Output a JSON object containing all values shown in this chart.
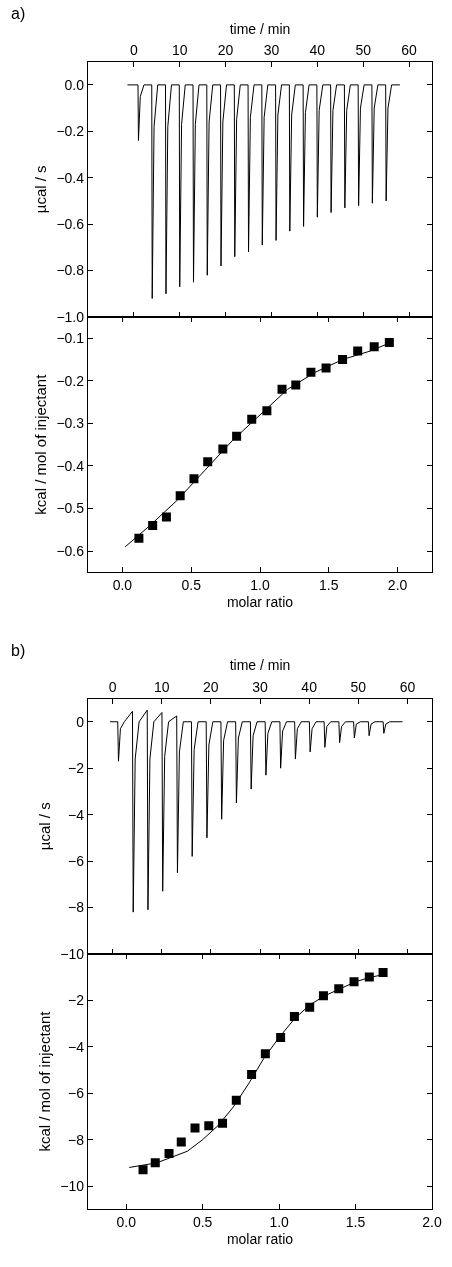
{
  "chart_data": [
    {
      "type": "line",
      "title": "a)",
      "xlabel": "time / min",
      "ylabel": "µcal / s",
      "xlim": [
        -10,
        65
      ],
      "xticks": [
        0,
        10,
        20,
        30,
        40,
        50,
        60
      ],
      "ylim": [
        -1.0,
        0.1
      ],
      "yticks": [
        {
          "value": 0,
          "label": "0.0"
        },
        {
          "value": -0.2,
          "label": "−0.2"
        },
        {
          "value": -0.4,
          "label": "−0.4"
        },
        {
          "value": -0.6,
          "label": "−0.6"
        },
        {
          "value": -0.8,
          "label": "−0.8"
        },
        {
          "value": -1.0,
          "label": "−1.0"
        }
      ],
      "marker": "none",
      "line_style": "solid",
      "series": [
        {
          "color": "#000000",
          "x": [
            -1.4,
            0.9,
            1,
            1.4,
            2.2,
            3.9,
            4,
            4.4,
            5.2,
            6.9,
            7,
            7.4,
            8.2,
            9.9,
            10,
            10.4,
            11.2,
            12.9,
            13,
            13.4,
            14.2,
            15.9,
            16,
            16.4,
            17.2,
            18.9,
            19,
            19.4,
            20.2,
            21.9,
            22,
            22.4,
            23.2,
            24.9,
            25,
            25.4,
            26.2,
            27.9,
            28,
            28.4,
            29.2,
            30.9,
            31,
            31.4,
            32.2,
            33.9,
            34,
            34.4,
            35.2,
            36.9,
            37,
            37.4,
            38.2,
            39.9,
            40,
            40.4,
            41.2,
            42.9,
            43,
            43.4,
            44.2,
            45.9,
            46,
            46.4,
            47.2,
            48.9,
            49,
            49.4,
            50.2,
            51.9,
            52,
            52.4,
            53.2,
            54.9,
            55,
            55.4,
            56.2,
            58
          ],
          "values": [
            0,
            0,
            -0.24,
            -0.05,
            0,
            0,
            -0.92,
            -0.18,
            0,
            0,
            -0.9,
            -0.18,
            0,
            0,
            -0.87,
            -0.17,
            0,
            0,
            -0.85,
            -0.17,
            0,
            0,
            -0.82,
            -0.16,
            0,
            0,
            -0.78,
            -0.16,
            0,
            0,
            -0.74,
            -0.15,
            0,
            0,
            -0.72,
            -0.14,
            0,
            0,
            -0.69,
            -0.14,
            0,
            0,
            -0.67,
            -0.13,
            0,
            0,
            -0.63,
            -0.13,
            0,
            0,
            -0.61,
            -0.12,
            0,
            0,
            -0.57,
            -0.11,
            0,
            0,
            -0.55,
            -0.11,
            0,
            0,
            -0.53,
            -0.11,
            0,
            0,
            -0.52,
            -0.1,
            0,
            0,
            -0.51,
            -0.1,
            0,
            0,
            -0.5,
            -0.1,
            0,
            0
          ]
        }
      ]
    },
    {
      "type": "scatter",
      "xlabel": "molar ratio",
      "ylabel": "kcal / mol of injectant",
      "xlim": [
        -0.25,
        2.25
      ],
      "xticks": [
        {
          "value": 0,
          "label": "0.0"
        },
        {
          "value": 0.5,
          "label": "0.5"
        },
        {
          "value": 1,
          "label": "1.0"
        },
        {
          "value": 1.5,
          "label": "1.5"
        },
        {
          "value": 2,
          "label": "2.0"
        }
      ],
      "ylim": [
        -0.65,
        -0.05
      ],
      "yticks": [
        {
          "value": -0.1,
          "label": "−0.1"
        },
        {
          "value": -0.2,
          "label": "−0.2"
        },
        {
          "value": -0.3,
          "label": "−0.3"
        },
        {
          "value": -0.4,
          "label": "−0.4"
        },
        {
          "value": -0.5,
          "label": "−0.5"
        },
        {
          "value": -0.6,
          "label": "−0.6"
        }
      ],
      "series": [
        {
          "marker": "square",
          "color": "#000000",
          "x": [
            0.12,
            0.22,
            0.32,
            0.42,
            0.52,
            0.62,
            0.73,
            0.83,
            0.94,
            1.05,
            1.16,
            1.26,
            1.37,
            1.48,
            1.6,
            1.71,
            1.83,
            1.94
          ],
          "values": [
            -0.57,
            -0.54,
            -0.52,
            -0.47,
            -0.43,
            -0.39,
            -0.36,
            -0.33,
            -0.29,
            -0.27,
            -0.22,
            -0.21,
            -0.18,
            -0.17,
            -0.15,
            -0.13,
            -0.12,
            -0.11
          ]
        },
        {
          "type": "line",
          "marker": "none",
          "color": "#000000",
          "x": [
            0.02,
            0.2,
            0.4,
            0.6,
            0.8,
            1.0,
            1.2,
            1.4,
            1.6,
            1.8,
            1.95
          ],
          "values": [
            -0.59,
            -0.54,
            -0.48,
            -0.41,
            -0.34,
            -0.28,
            -0.22,
            -0.18,
            -0.15,
            -0.13,
            -0.11
          ]
        }
      ]
    },
    {
      "type": "line",
      "title": "b)",
      "xlabel": "time / min",
      "ylabel": "µcal / s",
      "xlim": [
        -5,
        65
      ],
      "xticks": [
        0,
        10,
        20,
        30,
        40,
        50,
        60
      ],
      "ylim": [
        -10,
        1
      ],
      "yticks": [
        0,
        {
          "value": -2,
          "label": "−2"
        },
        {
          "value": -4,
          "label": "−4"
        },
        {
          "value": -6,
          "label": "−6"
        },
        {
          "value": -8,
          "label": "−8"
        },
        {
          "value": -10,
          "label": "−10"
        }
      ],
      "marker": "none",
      "line_style": "solid",
      "series": [
        {
          "color": "#000000",
          "x": [
            -0.5,
            1.05,
            1.2,
            1.6,
            2.4,
            4.05,
            4.2,
            4.6,
            5.4,
            7.05,
            7.2,
            7.6,
            8.4,
            10.05,
            10.2,
            10.6,
            11.4,
            13.05,
            13.2,
            13.6,
            14.4,
            16.05,
            16.2,
            16.6,
            17.4,
            19.05,
            19.2,
            19.6,
            20.4,
            22.05,
            22.2,
            22.6,
            23.4,
            25.05,
            25.2,
            25.6,
            26.4,
            28.05,
            28.2,
            28.6,
            29.4,
            31.05,
            31.2,
            31.6,
            32.4,
            34.05,
            34.2,
            34.6,
            35.4,
            37.05,
            37.2,
            37.6,
            38.4,
            40.05,
            40.2,
            40.6,
            41.4,
            43.05,
            43.2,
            43.6,
            44.4,
            46.05,
            46.2,
            46.6,
            47.4,
            49.05,
            49.2,
            49.6,
            50.4,
            52.05,
            52.2,
            52.6,
            53.4,
            55.05,
            55.2,
            55.6,
            56.4,
            59
          ],
          "values": [
            0,
            0,
            -1.7,
            -0.3,
            0,
            0.45,
            -8.2,
            -1.6,
            0,
            0.5,
            -8.1,
            -1.6,
            0,
            0.4,
            -7.3,
            -1.5,
            0,
            0.25,
            -6.5,
            -1.3,
            0,
            0,
            -5.8,
            -1.2,
            0,
            0,
            -5.0,
            -1.0,
            0,
            0,
            -4.2,
            -0.8,
            0,
            0,
            -3.5,
            -0.7,
            0,
            0,
            -2.9,
            -0.6,
            0,
            0,
            -2.3,
            -0.5,
            0,
            0,
            -2.0,
            -0.4,
            0,
            0,
            -1.6,
            -0.3,
            0,
            0,
            -1.3,
            -0.3,
            0,
            0,
            -1.1,
            -0.2,
            0,
            0,
            -0.9,
            -0.2,
            0,
            0,
            -0.7,
            -0.1,
            0,
            0,
            -0.6,
            -0.1,
            0,
            0,
            -0.5,
            -0.1,
            0,
            0
          ]
        }
      ]
    },
    {
      "type": "scatter",
      "xlabel": "molar ratio",
      "ylabel": "kcal / mol of injectant",
      "xlim": [
        -0.25,
        2.0
      ],
      "xticks": [
        {
          "value": 0,
          "label": "0.0"
        },
        {
          "value": 0.5,
          "label": "0.5"
        },
        {
          "value": 1,
          "label": "1.0"
        },
        {
          "value": 1.5,
          "label": "1.5"
        },
        {
          "value": 2,
          "label": "2.0"
        }
      ],
      "ylim": [
        -11,
        0
      ],
      "yticks": [
        {
          "value": -2,
          "label": "−2"
        },
        {
          "value": -4,
          "label": "−4"
        },
        {
          "value": -6,
          "label": "−6"
        },
        {
          "value": -8,
          "label": "−8"
        },
        {
          "value": -10,
          "label": "−10"
        }
      ],
      "series": [
        {
          "marker": "square",
          "color": "#000000",
          "x": [
            0.11,
            0.19,
            0.28,
            0.36,
            0.45,
            0.54,
            0.63,
            0.72,
            0.82,
            0.91,
            1.01,
            1.1,
            1.2,
            1.29,
            1.39,
            1.49,
            1.59,
            1.68
          ],
          "values": [
            -9.3,
            -9.0,
            -8.6,
            -8.1,
            -7.5,
            -7.4,
            -7.3,
            -6.3,
            -5.2,
            -4.3,
            -3.6,
            -2.7,
            -2.3,
            -1.8,
            -1.5,
            -1.2,
            -1.0,
            -0.8
          ]
        },
        {
          "type": "line",
          "marker": "none",
          "color": "#000000",
          "x": [
            0.02,
            0.2,
            0.4,
            0.5,
            0.6,
            0.7,
            0.8,
            0.9,
            1.0,
            1.1,
            1.2,
            1.3,
            1.4,
            1.5,
            1.6,
            1.68
          ],
          "values": [
            -9.2,
            -9.0,
            -8.5,
            -8.0,
            -7.4,
            -6.6,
            -5.6,
            -4.5,
            -3.6,
            -2.8,
            -2.2,
            -1.8,
            -1.5,
            -1.2,
            -1.0,
            -0.9
          ]
        }
      ]
    }
  ]
}
